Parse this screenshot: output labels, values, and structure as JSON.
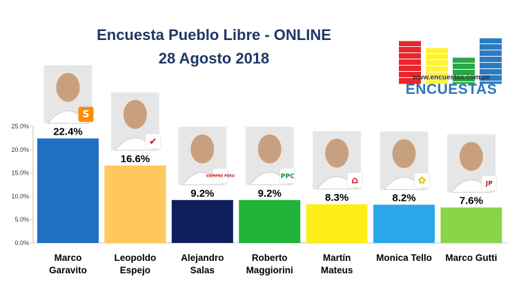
{
  "header": {
    "title_line1": "Encuesta Pueblo Libre - ONLINE",
    "title_line2": "28 Agosto 2018"
  },
  "logo": {
    "url": "www.encuestas.com.pe",
    "brand": "ENCUESTAS",
    "bar_colors": [
      "#e8262b",
      "#fff33a",
      "#2aa845",
      "#2a7cc1"
    ]
  },
  "chart_data": {
    "type": "bar",
    "categories": [
      [
        "Marco",
        "Garavito"
      ],
      [
        "Leopoldo",
        "Espejo"
      ],
      [
        "Alejandro",
        "Salas"
      ],
      [
        "Roberto",
        "Maggiorini"
      ],
      [
        "Martín",
        "Mateus"
      ],
      [
        "Monica Tello"
      ],
      [
        "Marco Gutti"
      ]
    ],
    "values": [
      22.4,
      16.6,
      9.2,
      9.2,
      8.3,
      8.2,
      7.6
    ],
    "value_labels": [
      "22.4%",
      "16.6%",
      "9.2%",
      "9.2%",
      "8.3%",
      "8.2%",
      "7.6%"
    ],
    "colors": [
      "#1f6fc5",
      "#ffc75c",
      "#0f1f5c",
      "#21b339",
      "#ffee1a",
      "#2aa7e8",
      "#8bd44a"
    ],
    "ylim": [
      0,
      25
    ],
    "yticks": [
      0,
      5,
      10,
      15,
      20,
      25
    ],
    "ytick_labels": [
      "0.0%",
      "5.0%",
      "10.0%",
      "15.0%",
      "20.0%",
      "25.0%"
    ],
    "grid": false,
    "party_badges": [
      {
        "text": "S",
        "bg": "#ff8c00",
        "fg": "#ffffff"
      },
      {
        "text": "✔",
        "bg": "#ffffff",
        "fg": "#d4141c"
      },
      {
        "text": "SIEMPRE PERU",
        "bg": "#ffffff",
        "fg": "#d4141c"
      },
      {
        "text": "PPC",
        "bg": "#ffffff",
        "fg": "#1a8a2e"
      },
      {
        "text": "⌂",
        "bg": "#ffffff",
        "fg": "#d4141c"
      },
      {
        "text": "✿",
        "bg": "#ffffff",
        "fg": "#e8b800"
      },
      {
        "text": "JP",
        "bg": "#ffffff",
        "fg": "#c4161c"
      }
    ]
  }
}
